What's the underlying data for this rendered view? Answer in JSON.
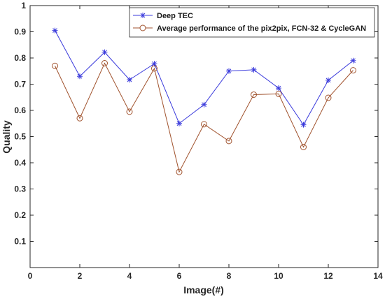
{
  "chart_data": {
    "type": "line",
    "xlabel": "Image(#)",
    "ylabel": "Quality",
    "xlim": [
      0,
      14
    ],
    "ylim": [
      0,
      1
    ],
    "xticks": [
      0,
      2,
      4,
      6,
      8,
      10,
      12,
      14
    ],
    "yticks": [
      0.1,
      0.2,
      0.3,
      0.4,
      0.5,
      0.6,
      0.7,
      0.8,
      0.9,
      1
    ],
    "grid": false,
    "legend_position": "top-right",
    "x": [
      1,
      2,
      3,
      4,
      5,
      6,
      7,
      8,
      9,
      10,
      11,
      12,
      13
    ],
    "series": [
      {
        "name": "Deep TEC",
        "color": "#3b3bdc",
        "marker": "asterisk",
        "values": [
          0.905,
          0.73,
          0.822,
          0.717,
          0.778,
          0.55,
          0.622,
          0.75,
          0.755,
          0.685,
          0.545,
          0.715,
          0.79
        ]
      },
      {
        "name": "Average performance of the pix2pix, FCN-32 & CycleGAN",
        "color": "#a0522d",
        "marker": "circle",
        "values": [
          0.77,
          0.57,
          0.78,
          0.595,
          0.76,
          0.365,
          0.547,
          0.483,
          0.66,
          0.663,
          0.46,
          0.648,
          0.753
        ]
      }
    ]
  }
}
